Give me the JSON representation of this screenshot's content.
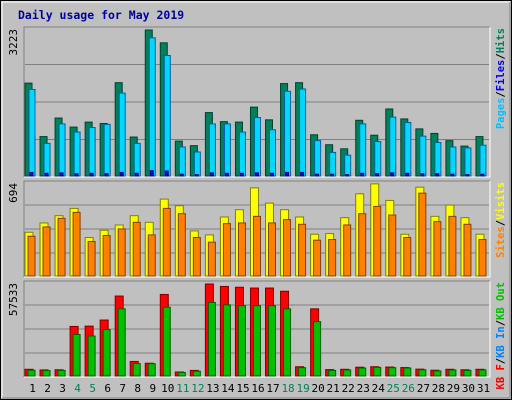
{
  "title": "Daily usage for May 2019",
  "colors": {
    "background": "#C0C0C0",
    "title": "#0000A0",
    "hits": "#00805C",
    "hits_light": "#00C88C",
    "files": "#0000FF",
    "files_light": "#00D8FF",
    "pages": "#00C0FF",
    "visits": "#FFFF00",
    "sites": "#FF8000",
    "kb_f": "#FF0000",
    "kb_in": "#0080FF",
    "kb_out": "#00C000",
    "weekend_label": "#00805C",
    "weekday_label": "#000000"
  },
  "chart_data": {
    "type": "bar",
    "title": "Daily usage for May 2019",
    "x": [
      "1",
      "2",
      "3",
      "4",
      "5",
      "6",
      "7",
      "8",
      "9",
      "10",
      "11",
      "12",
      "13",
      "14",
      "15",
      "16",
      "17",
      "18",
      "19",
      "20",
      "21",
      "22",
      "23",
      "24",
      "25",
      "26",
      "27",
      "28",
      "29",
      "30",
      "31"
    ],
    "weekend_days": [
      "4",
      "5",
      "11",
      "12",
      "18",
      "19",
      "25",
      "26"
    ],
    "panels": [
      {
        "name": "hits-files-pages",
        "ymax_label": "3223",
        "ylim": [
          0,
          3223
        ],
        "legend": [
          "Pages",
          "/",
          "Files",
          "/",
          "Hits"
        ],
        "legend_colors": [
          "#00C0FF",
          "#000000",
          "#0000FF",
          "#000000",
          "#00805C"
        ],
        "series": [
          {
            "name": "Hits",
            "values": [
              2050,
              870,
              1280,
              1080,
              1190,
              1160,
              2060,
              860,
              3223,
              2940,
              770,
              670,
              1400,
              1200,
              1190,
              1520,
              1240,
              2040,
              2060,
              910,
              690,
              600,
              1230,
              900,
              1480,
              1260,
              1040,
              940,
              780,
              660,
              870
            ]
          },
          {
            "name": "Files",
            "values": [
              1910,
              720,
              1150,
              970,
              1070,
              1140,
              1830,
              720,
              3050,
              2660,
              640,
              530,
              1150,
              1150,
              970,
              1290,
              1020,
              1870,
              1920,
              780,
              520,
              460,
              1150,
              760,
              1300,
              1180,
              880,
              740,
              640,
              620,
              680
            ]
          },
          {
            "name": "Pages",
            "values": [
              80,
              60,
              70,
              50,
              60,
              50,
              80,
              60,
              120,
              110,
              40,
              30,
              70,
              60,
              60,
              70,
              60,
              80,
              80,
              40,
              40,
              30,
              60,
              50,
              70,
              60,
              50,
              50,
              40,
              30,
              40
            ]
          }
        ]
      },
      {
        "name": "visits-sites",
        "ymax_label": "694",
        "ylim": [
          0,
          694
        ],
        "legend": [
          "Sites",
          "/",
          "Visits"
        ],
        "legend_colors": [
          "#FF8000",
          "#000000",
          "#FFFF00"
        ],
        "series": [
          {
            "name": "Visits",
            "values": [
              330,
              400,
              455,
              510,
              290,
              345,
              385,
              455,
              405,
              580,
              530,
              340,
              310,
              445,
              500,
              665,
              550,
              500,
              445,
              315,
              320,
              440,
              620,
              695,
              570,
              315,
              670,
              450,
              535,
              440,
              315
            ]
          },
          {
            "name": "Sites",
            "values": [
              300,
              370,
              435,
              480,
              260,
              305,
              355,
              405,
              310,
              510,
              470,
              290,
              255,
              395,
              400,
              450,
              400,
              425,
              390,
              270,
              275,
              385,
              470,
              525,
              460,
              290,
              625,
              410,
              450,
              390,
              275
            ]
          }
        ]
      },
      {
        "name": "kbytes",
        "ymax_label": "57533",
        "ylim": [
          0,
          57533
        ],
        "legend": [
          "KB F",
          "/",
          "KB In",
          "/",
          "KB Out"
        ],
        "legend_colors": [
          "#FF0000",
          "#000000",
          "#0080FF",
          "#000000",
          "#00C000"
        ],
        "series": [
          {
            "name": "KB F",
            "values": [
              4200,
              3800,
              3900,
              31000,
              31200,
              35000,
              50000,
              9100,
              8000,
              51000,
              2500,
              3500,
              57533,
              56000,
              55500,
              55000,
              55000,
              53000,
              5800,
              42000,
              4000,
              4200,
              5500,
              5800,
              5600,
              5300,
              4300,
              3600,
              4200,
              3900,
              4200
            ]
          },
          {
            "name": "KB In",
            "values": [
              80,
              70,
              70,
              90,
              90,
              90,
              100,
              80,
              80,
              100,
              60,
              60,
              110,
              110,
              110,
              110,
              110,
              110,
              70,
              100,
              70,
              70,
              70,
              80,
              70,
              70,
              70,
              70,
              70,
              70,
              70
            ]
          },
          {
            "name": "KB Out",
            "values": [
              3600,
              3400,
              3500,
              26000,
              25000,
              29000,
              42000,
              7800,
              7700,
              43000,
              2200,
              3000,
              46000,
              44500,
              44000,
              44000,
              44000,
              42000,
              5200,
              34000,
              3500,
              3800,
              5000,
              5400,
              5200,
              5000,
              3900,
              3200,
              3800,
              3500,
              3800
            ]
          }
        ]
      }
    ]
  }
}
